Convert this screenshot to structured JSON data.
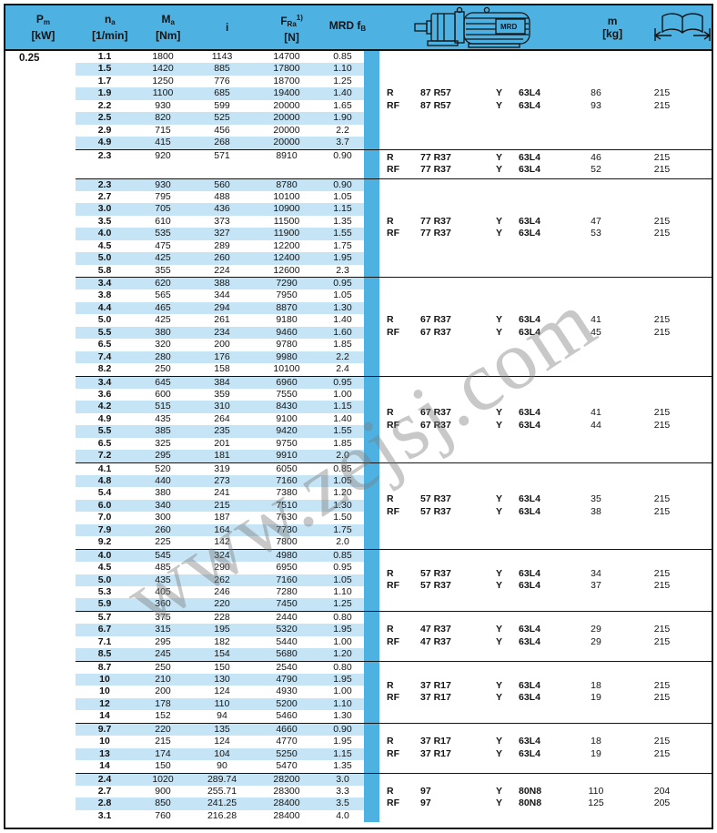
{
  "page": {
    "watermark": "www.zejsj.com",
    "power_kw": "0.25"
  },
  "header": {
    "pm": {
      "base": "P",
      "sub": "m",
      "unit": "[kW]"
    },
    "na": {
      "base": "n",
      "sub": "a",
      "unit": "[1/min]"
    },
    "ma": {
      "base": "M",
      "sub": "a",
      "unit": "[Nm]"
    },
    "i": {
      "base": "i"
    },
    "fra": {
      "base": "F",
      "sub": "Ra",
      "sup": "1)",
      "unit": "[N]"
    },
    "fb": {
      "base": "MRD f",
      "sub": "B"
    },
    "mass": {
      "base": "m",
      "unit": "[kg]"
    },
    "mrd_label": "MRD"
  },
  "table": {
    "column_meaning": [
      "na [1/min]",
      "Ma [Nm]",
      "i",
      "FRa [N]",
      "MRD fB"
    ],
    "motor_column_meaning": [
      "gear type",
      "gear size",
      "motor series",
      "motor size",
      "m [kg]",
      "page"
    ],
    "groups": [
      {
        "rows": [
          [
            "1.1",
            "1800",
            "1143",
            "14700",
            "0.85"
          ],
          [
            "1.5",
            "1420",
            "885",
            "17800",
            "1.10"
          ],
          [
            "1.7",
            "1250",
            "776",
            "18700",
            "1.25"
          ],
          [
            "1.9",
            "1100",
            "685",
            "19400",
            "1.40"
          ],
          [
            "2.2",
            "930",
            "599",
            "20000",
            "1.65"
          ],
          [
            "2.5",
            "820",
            "525",
            "20000",
            "1.90"
          ],
          [
            "2.9",
            "715",
            "456",
            "20000",
            "2.2"
          ],
          [
            "4.9",
            "415",
            "268",
            "20000",
            "3.7"
          ]
        ],
        "motor_rows": [
          [
            "R",
            "87 R57",
            "Y",
            "63L4",
            "86",
            "215"
          ],
          [
            "RF",
            "87 R57",
            "Y",
            "63L4",
            "93",
            "215"
          ]
        ]
      },
      {
        "rows": [
          [
            "2.3",
            "920",
            "571",
            "8910",
            "0.90"
          ]
        ],
        "motor_rows": [
          [
            "R",
            "77 R37",
            "Y",
            "63L4",
            "46",
            "215"
          ],
          [
            "RF",
            "77 R37",
            "Y",
            "63L4",
            "52",
            "215"
          ]
        ]
      },
      {
        "rows": [
          [
            "2.3",
            "930",
            "560",
            "8780",
            "0.90"
          ],
          [
            "2.7",
            "795",
            "488",
            "10100",
            "1.05"
          ],
          [
            "3.0",
            "705",
            "436",
            "10900",
            "1.15"
          ],
          [
            "3.5",
            "610",
            "373",
            "11500",
            "1.35"
          ],
          [
            "4.0",
            "535",
            "327",
            "11900",
            "1.55"
          ],
          [
            "4.5",
            "475",
            "289",
            "12200",
            "1.75"
          ],
          [
            "5.0",
            "425",
            "260",
            "12400",
            "1.95"
          ],
          [
            "5.8",
            "355",
            "224",
            "12600",
            "2.3"
          ]
        ],
        "motor_rows": [
          [
            "R",
            "77 R37",
            "Y",
            "63L4",
            "47",
            "215"
          ],
          [
            "RF",
            "77 R37",
            "Y",
            "63L4",
            "53",
            "215"
          ]
        ]
      },
      {
        "rows": [
          [
            "3.4",
            "620",
            "388",
            "7290",
            "0.95"
          ],
          [
            "3.8",
            "565",
            "344",
            "7950",
            "1.05"
          ],
          [
            "4.4",
            "465",
            "294",
            "8870",
            "1.30"
          ],
          [
            "5.0",
            "425",
            "261",
            "9180",
            "1.40"
          ],
          [
            "5.5",
            "380",
            "234",
            "9460",
            "1.60"
          ],
          [
            "6.5",
            "320",
            "200",
            "9780",
            "1.85"
          ],
          [
            "7.4",
            "280",
            "176",
            "9980",
            "2.2"
          ],
          [
            "8.2",
            "250",
            "158",
            "10100",
            "2.4"
          ]
        ],
        "motor_rows": [
          [
            "R",
            "67 R37",
            "Y",
            "63L4",
            "41",
            "215"
          ],
          [
            "RF",
            "67 R37",
            "Y",
            "63L4",
            "45",
            "215"
          ]
        ]
      },
      {
        "rows": [
          [
            "3.4",
            "645",
            "384",
            "6960",
            "0.95"
          ],
          [
            "3.6",
            "600",
            "359",
            "7550",
            "1.00"
          ],
          [
            "4.2",
            "515",
            "310",
            "8430",
            "1.15"
          ],
          [
            "4.9",
            "435",
            "264",
            "9100",
            "1.40"
          ],
          [
            "5.5",
            "385",
            "235",
            "9420",
            "1.55"
          ],
          [
            "6.5",
            "325",
            "201",
            "9750",
            "1.85"
          ],
          [
            "7.2",
            "295",
            "181",
            "9910",
            "2.0"
          ]
        ],
        "motor_rows": [
          [
            "R",
            "67 R37",
            "Y",
            "63L4",
            "41",
            "215"
          ],
          [
            "RF",
            "67 R37",
            "Y",
            "63L4",
            "44",
            "215"
          ]
        ]
      },
      {
        "rows": [
          [
            "4.1",
            "520",
            "319",
            "6050",
            "0.85"
          ],
          [
            "4.8",
            "440",
            "273",
            "7160",
            "1.05"
          ],
          [
            "5.4",
            "380",
            "241",
            "7380",
            "1.20"
          ],
          [
            "6.0",
            "340",
            "215",
            "7510",
            "1.30"
          ],
          [
            "7.0",
            "300",
            "187",
            "7630",
            "1.50"
          ],
          [
            "7.9",
            "260",
            "164",
            "7730",
            "1.75"
          ],
          [
            "9.2",
            "225",
            "142",
            "7800",
            "2.0"
          ]
        ],
        "motor_rows": [
          [
            "R",
            "57 R37",
            "Y",
            "63L4",
            "35",
            "215"
          ],
          [
            "RF",
            "57 R37",
            "Y",
            "63L4",
            "38",
            "215"
          ]
        ]
      },
      {
        "rows": [
          [
            "4.0",
            "545",
            "324",
            "4980",
            "0.85"
          ],
          [
            "4.5",
            "485",
            "290",
            "6950",
            "0.95"
          ],
          [
            "5.0",
            "435",
            "262",
            "7160",
            "1.05"
          ],
          [
            "5.3",
            "405",
            "246",
            "7280",
            "1.10"
          ],
          [
            "5.9",
            "360",
            "220",
            "7450",
            "1.25"
          ]
        ],
        "motor_rows": [
          [
            "R",
            "57 R37",
            "Y",
            "63L4",
            "34",
            "215"
          ],
          [
            "RF",
            "57 R37",
            "Y",
            "63L4",
            "37",
            "215"
          ]
        ]
      },
      {
        "rows": [
          [
            "5.7",
            "375",
            "228",
            "2440",
            "0.80"
          ],
          [
            "6.7",
            "315",
            "195",
            "5320",
            "1.95"
          ],
          [
            "7.1",
            "295",
            "182",
            "5440",
            "1.00"
          ],
          [
            "8.5",
            "245",
            "154",
            "5680",
            "1.20"
          ]
        ],
        "motor_rows": [
          [
            "R",
            "47 R37",
            "Y",
            "63L4",
            "29",
            "215"
          ],
          [
            "RF",
            "47 R37",
            "Y",
            "63L4",
            "29",
            "215"
          ]
        ]
      },
      {
        "rows": [
          [
            "8.7",
            "250",
            "150",
            "2540",
            "0.80"
          ],
          [
            "10",
            "210",
            "130",
            "4790",
            "1.95"
          ],
          [
            "10",
            "200",
            "124",
            "4930",
            "1.00"
          ],
          [
            "12",
            "178",
            "110",
            "5200",
            "1.10"
          ],
          [
            "14",
            "152",
            "94",
            "5460",
            "1.30"
          ]
        ],
        "motor_rows": [
          [
            "R",
            "37 R17",
            "Y",
            "63L4",
            "18",
            "215"
          ],
          [
            "RF",
            "37 R17",
            "Y",
            "63L4",
            "19",
            "215"
          ]
        ]
      },
      {
        "rows": [
          [
            "9.7",
            "220",
            "135",
            "4660",
            "0.90"
          ],
          [
            "10",
            "215",
            "124",
            "4770",
            "1.95"
          ],
          [
            "13",
            "174",
            "104",
            "5250",
            "1.15"
          ],
          [
            "14",
            "150",
            "90",
            "5470",
            "1.35"
          ]
        ],
        "motor_rows": [
          [
            "R",
            "37 R17",
            "Y",
            "63L4",
            "18",
            "215"
          ],
          [
            "RF",
            "37 R17",
            "Y",
            "63L4",
            "19",
            "215"
          ]
        ]
      },
      {
        "rows": [
          [
            "2.4",
            "1020",
            "289.74",
            "28200",
            "3.0"
          ],
          [
            "2.7",
            "900",
            "255.71",
            "28300",
            "3.3"
          ],
          [
            "2.8",
            "850",
            "241.25",
            "28400",
            "3.5"
          ],
          [
            "3.1",
            "760",
            "216.28",
            "28400",
            "4.0"
          ]
        ],
        "motor_rows": [
          [
            "R",
            "97",
            "Y",
            "80N8",
            "110",
            "204"
          ],
          [
            "RF",
            "97",
            "Y",
            "80N8",
            "125",
            "205"
          ]
        ]
      }
    ]
  }
}
